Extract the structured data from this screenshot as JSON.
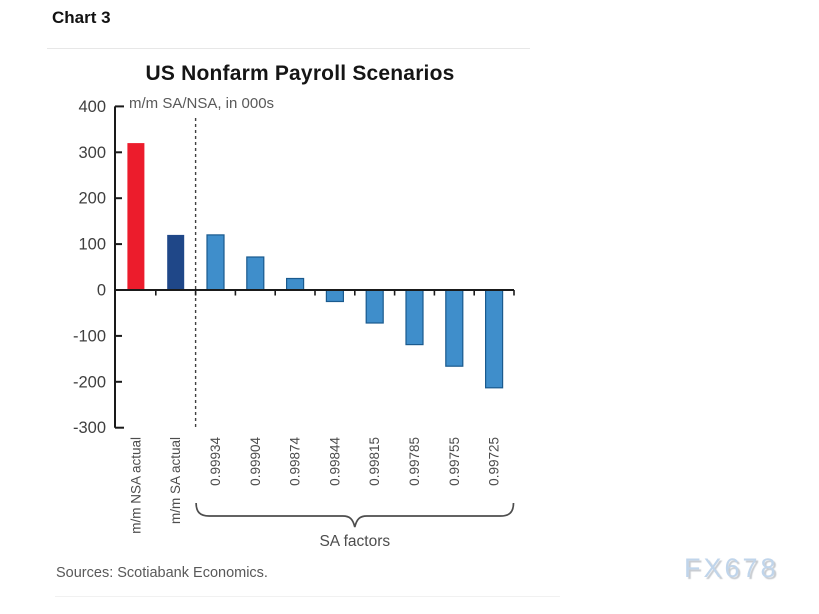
{
  "page": {
    "chart_label": "Chart 3",
    "sources": "Sources: Scotiabank Economics.",
    "watermark": "FX678"
  },
  "chart_data": {
    "type": "bar",
    "title": "US Nonfarm Payroll Scenarios",
    "subtitle": "m/m SA/NSA, in 000s",
    "categories": [
      "m/m NSA actual",
      "m/m SA actual",
      "0.99934",
      "0.99904",
      "0.99874",
      "0.99844",
      "0.99815",
      "0.99785",
      "0.99755",
      "0.99725"
    ],
    "values": [
      320,
      120,
      120,
      72,
      25,
      -25,
      -72,
      -119,
      -166,
      -213
    ],
    "bar_roles": [
      "nsa",
      "sa",
      "factor",
      "factor",
      "factor",
      "factor",
      "factor",
      "factor",
      "factor",
      "factor"
    ],
    "colors": {
      "nsa": "#ec1c2c",
      "sa": "#1f4788",
      "factor_fill": "#3f8ecb",
      "factor_stroke": "#1a5a8e",
      "axis": "#1a1a1a",
      "tick_text": "#3f3f3f",
      "category_text": "#4d4d4d",
      "dashed_line": "#404040"
    },
    "yticks": [
      400,
      300,
      200,
      100,
      0,
      -100,
      -200,
      -300
    ],
    "ylim": [
      -300,
      400
    ],
    "grid": false,
    "legend": "none",
    "divider_after_index": 1,
    "group_label": "SA factors",
    "group_start_index": 2,
    "group_end_index": 9
  }
}
